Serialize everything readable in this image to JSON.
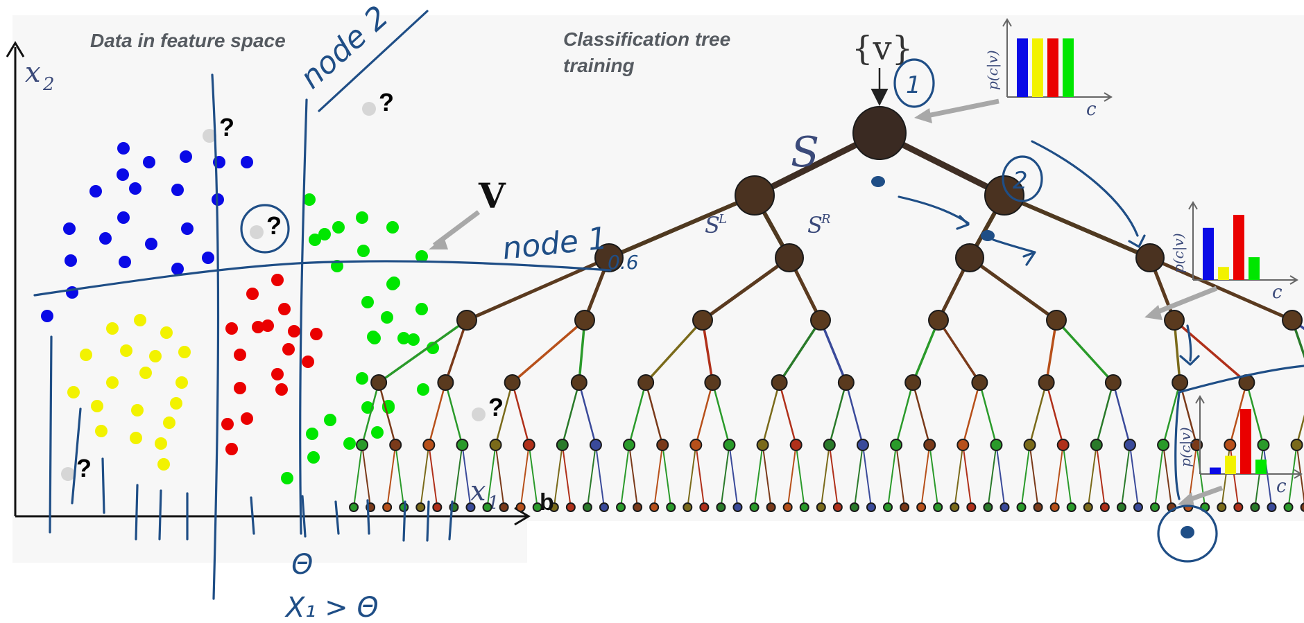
{
  "left_panel": {
    "title": "Data in feature space",
    "x_axis_label": "x",
    "x_axis_sub": "1",
    "y_axis_label": "x",
    "y_axis_sub": "2",
    "v_label": "V",
    "unknown_marker": "?",
    "colors": {
      "blue": "#0a0ae6",
      "yellow": "#f2f200",
      "red": "#ea0000",
      "green": "#00e600",
      "unknown": "#d8d8d8"
    }
  },
  "right_panel": {
    "title_line1": "Classification tree",
    "title_line2": "training",
    "root_set": "{v}",
    "s_label": "S",
    "sl_label": "S",
    "sl_sup": "L",
    "sr_label": "S",
    "sr_sup": "R",
    "panel_letter": "b",
    "hist_ylabel": "p(c|v)",
    "hist_xlabel": "c",
    "histograms": [
      {
        "name": "root",
        "values": [
          0.9,
          0.9,
          0.9,
          0.9
        ]
      },
      {
        "name": "mid",
        "values": [
          0.8,
          0.2,
          1.0,
          0.35
        ]
      },
      {
        "name": "leaf",
        "values": [
          0.1,
          0.28,
          1.0,
          0.22
        ]
      }
    ],
    "hist_colors": [
      "#0a0ae6",
      "#f2f200",
      "#ea0000",
      "#00e600"
    ]
  },
  "annotations": {
    "node2": "node 2",
    "node1": "node 1",
    "value": "0.6",
    "theta": "Θ",
    "rule": "X₁ > Θ",
    "circle1": "1",
    "circle2": "2"
  }
}
